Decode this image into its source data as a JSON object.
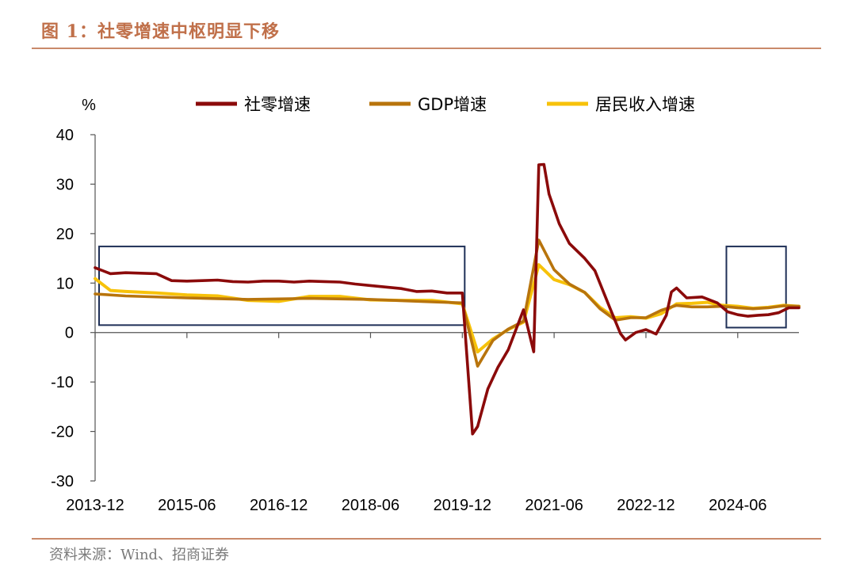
{
  "header": {
    "title": "图 1：社零增速中枢明显下移"
  },
  "footer": {
    "source": "资料来源：Wind、招商证券"
  },
  "colors": {
    "retail": "#8b0a0a",
    "gdp": "#b8740c",
    "income": "#f7c20a",
    "frame": "#1f3057",
    "accent": "#c0704a"
  },
  "chart_data": {
    "type": "line",
    "y_unit": "%",
    "ylim": [
      -30,
      40
    ],
    "yticks": [
      40,
      30,
      20,
      10,
      0,
      -10,
      -20,
      -30
    ],
    "xlim": [
      "2013-12",
      "2025-06"
    ],
    "xticks": [
      "2013-12",
      "2015-06",
      "2016-12",
      "2018-06",
      "2019-12",
      "2021-06",
      "2022-12",
      "2024-06"
    ],
    "series": [
      {
        "name": "社零增速",
        "color": "#8b0a0a",
        "points": [
          [
            "2013-12",
            13.1
          ],
          [
            "2014-03",
            11.9
          ],
          [
            "2014-06",
            12.1
          ],
          [
            "2014-09",
            12.0
          ],
          [
            "2014-12",
            11.9
          ],
          [
            "2015-03",
            10.5
          ],
          [
            "2015-06",
            10.4
          ],
          [
            "2015-09",
            10.5
          ],
          [
            "2015-12",
            10.6
          ],
          [
            "2016-03",
            10.3
          ],
          [
            "2016-06",
            10.2
          ],
          [
            "2016-09",
            10.4
          ],
          [
            "2016-12",
            10.4
          ],
          [
            "2017-03",
            10.2
          ],
          [
            "2017-06",
            10.4
          ],
          [
            "2017-09",
            10.3
          ],
          [
            "2017-12",
            10.2
          ],
          [
            "2018-03",
            9.8
          ],
          [
            "2018-06",
            9.5
          ],
          [
            "2018-09",
            9.2
          ],
          [
            "2018-12",
            8.9
          ],
          [
            "2019-03",
            8.3
          ],
          [
            "2019-06",
            8.4
          ],
          [
            "2019-09",
            8.0
          ],
          [
            "2019-12",
            8.0
          ],
          [
            "2020-02",
            -20.5
          ],
          [
            "2020-03",
            -19.0
          ],
          [
            "2020-05",
            -11.4
          ],
          [
            "2020-07",
            -7.0
          ],
          [
            "2020-09",
            -3.5
          ],
          [
            "2020-12",
            4.6
          ],
          [
            "2021-02",
            -3.9
          ],
          [
            "2021-03",
            33.9
          ],
          [
            "2021-04",
            34.0
          ],
          [
            "2021-05",
            28.0
          ],
          [
            "2021-07",
            22.0
          ],
          [
            "2021-09",
            18.0
          ],
          [
            "2021-12",
            15.0
          ],
          [
            "2022-02",
            12.5
          ],
          [
            "2022-05",
            4.8
          ],
          [
            "2022-07",
            -0.2
          ],
          [
            "2022-08",
            -1.5
          ],
          [
            "2022-10",
            0.0
          ],
          [
            "2022-12",
            0.6
          ],
          [
            "2023-02",
            -0.3
          ],
          [
            "2023-04",
            3.5
          ],
          [
            "2023-05",
            8.2
          ],
          [
            "2023-06",
            9.0
          ],
          [
            "2023-08",
            7.0
          ],
          [
            "2023-11",
            7.2
          ],
          [
            "2024-02",
            6.0
          ],
          [
            "2024-04",
            4.2
          ],
          [
            "2024-06",
            3.6
          ],
          [
            "2024-08",
            3.3
          ],
          [
            "2024-10",
            3.5
          ],
          [
            "2024-12",
            3.6
          ],
          [
            "2025-02",
            4.0
          ],
          [
            "2025-04",
            5.0
          ],
          [
            "2025-06",
            5.0
          ]
        ]
      },
      {
        "name": "GDP增速",
        "color": "#b8740c",
        "points": [
          [
            "2013-12",
            7.8
          ],
          [
            "2014-06",
            7.4
          ],
          [
            "2015-06",
            7.0
          ],
          [
            "2016-06",
            6.7
          ],
          [
            "2017-06",
            6.9
          ],
          [
            "2018-06",
            6.7
          ],
          [
            "2019-06",
            6.2
          ],
          [
            "2019-12",
            6.0
          ],
          [
            "2020-03",
            -6.8
          ],
          [
            "2020-06",
            -1.6
          ],
          [
            "2020-09",
            0.7
          ],
          [
            "2020-12",
            2.3
          ],
          [
            "2021-03",
            18.7
          ],
          [
            "2021-06",
            12.7
          ],
          [
            "2021-09",
            9.8
          ],
          [
            "2021-12",
            8.1
          ],
          [
            "2022-03",
            4.8
          ],
          [
            "2022-06",
            2.5
          ],
          [
            "2022-09",
            3.0
          ],
          [
            "2022-12",
            3.0
          ],
          [
            "2023-03",
            4.5
          ],
          [
            "2023-06",
            5.5
          ],
          [
            "2023-09",
            5.2
          ],
          [
            "2023-12",
            5.2
          ],
          [
            "2024-03",
            5.3
          ],
          [
            "2024-06",
            5.0
          ],
          [
            "2024-09",
            4.8
          ],
          [
            "2024-12",
            5.0
          ],
          [
            "2025-03",
            5.4
          ],
          [
            "2025-06",
            5.3
          ]
        ]
      },
      {
        "name": "居民收入增速",
        "color": "#f7c20a",
        "points": [
          [
            "2013-12",
            10.9
          ],
          [
            "2014-03",
            8.5
          ],
          [
            "2014-06",
            8.3
          ],
          [
            "2014-12",
            8.0
          ],
          [
            "2015-06",
            7.6
          ],
          [
            "2015-12",
            7.4
          ],
          [
            "2016-06",
            6.5
          ],
          [
            "2016-12",
            6.3
          ],
          [
            "2017-06",
            7.3
          ],
          [
            "2017-12",
            7.3
          ],
          [
            "2018-06",
            6.6
          ],
          [
            "2018-12",
            6.5
          ],
          [
            "2019-06",
            6.5
          ],
          [
            "2019-12",
            5.8
          ],
          [
            "2020-03",
            -3.9
          ],
          [
            "2020-06",
            -1.3
          ],
          [
            "2020-09",
            0.6
          ],
          [
            "2020-12",
            2.1
          ],
          [
            "2021-03",
            13.7
          ],
          [
            "2021-06",
            10.7
          ],
          [
            "2021-09",
            9.7
          ],
          [
            "2021-12",
            8.1
          ],
          [
            "2022-03",
            5.1
          ],
          [
            "2022-06",
            3.0
          ],
          [
            "2022-09",
            3.2
          ],
          [
            "2022-12",
            2.9
          ],
          [
            "2023-03",
            3.8
          ],
          [
            "2023-06",
            5.8
          ],
          [
            "2023-09",
            5.9
          ],
          [
            "2023-12",
            6.1
          ],
          [
            "2024-03",
            5.5
          ],
          [
            "2024-06",
            5.3
          ],
          [
            "2024-09",
            4.9
          ],
          [
            "2024-12",
            5.1
          ],
          [
            "2025-03",
            5.5
          ],
          [
            "2025-06",
            5.3
          ]
        ]
      }
    ],
    "highlight_boxes": [
      {
        "x": [
          "2013-12",
          "2019-12"
        ],
        "y": [
          1.5,
          17.4
        ]
      },
      {
        "x": [
          "2024-03",
          "2025-03"
        ],
        "y": [
          1.0,
          17.4
        ]
      }
    ]
  }
}
